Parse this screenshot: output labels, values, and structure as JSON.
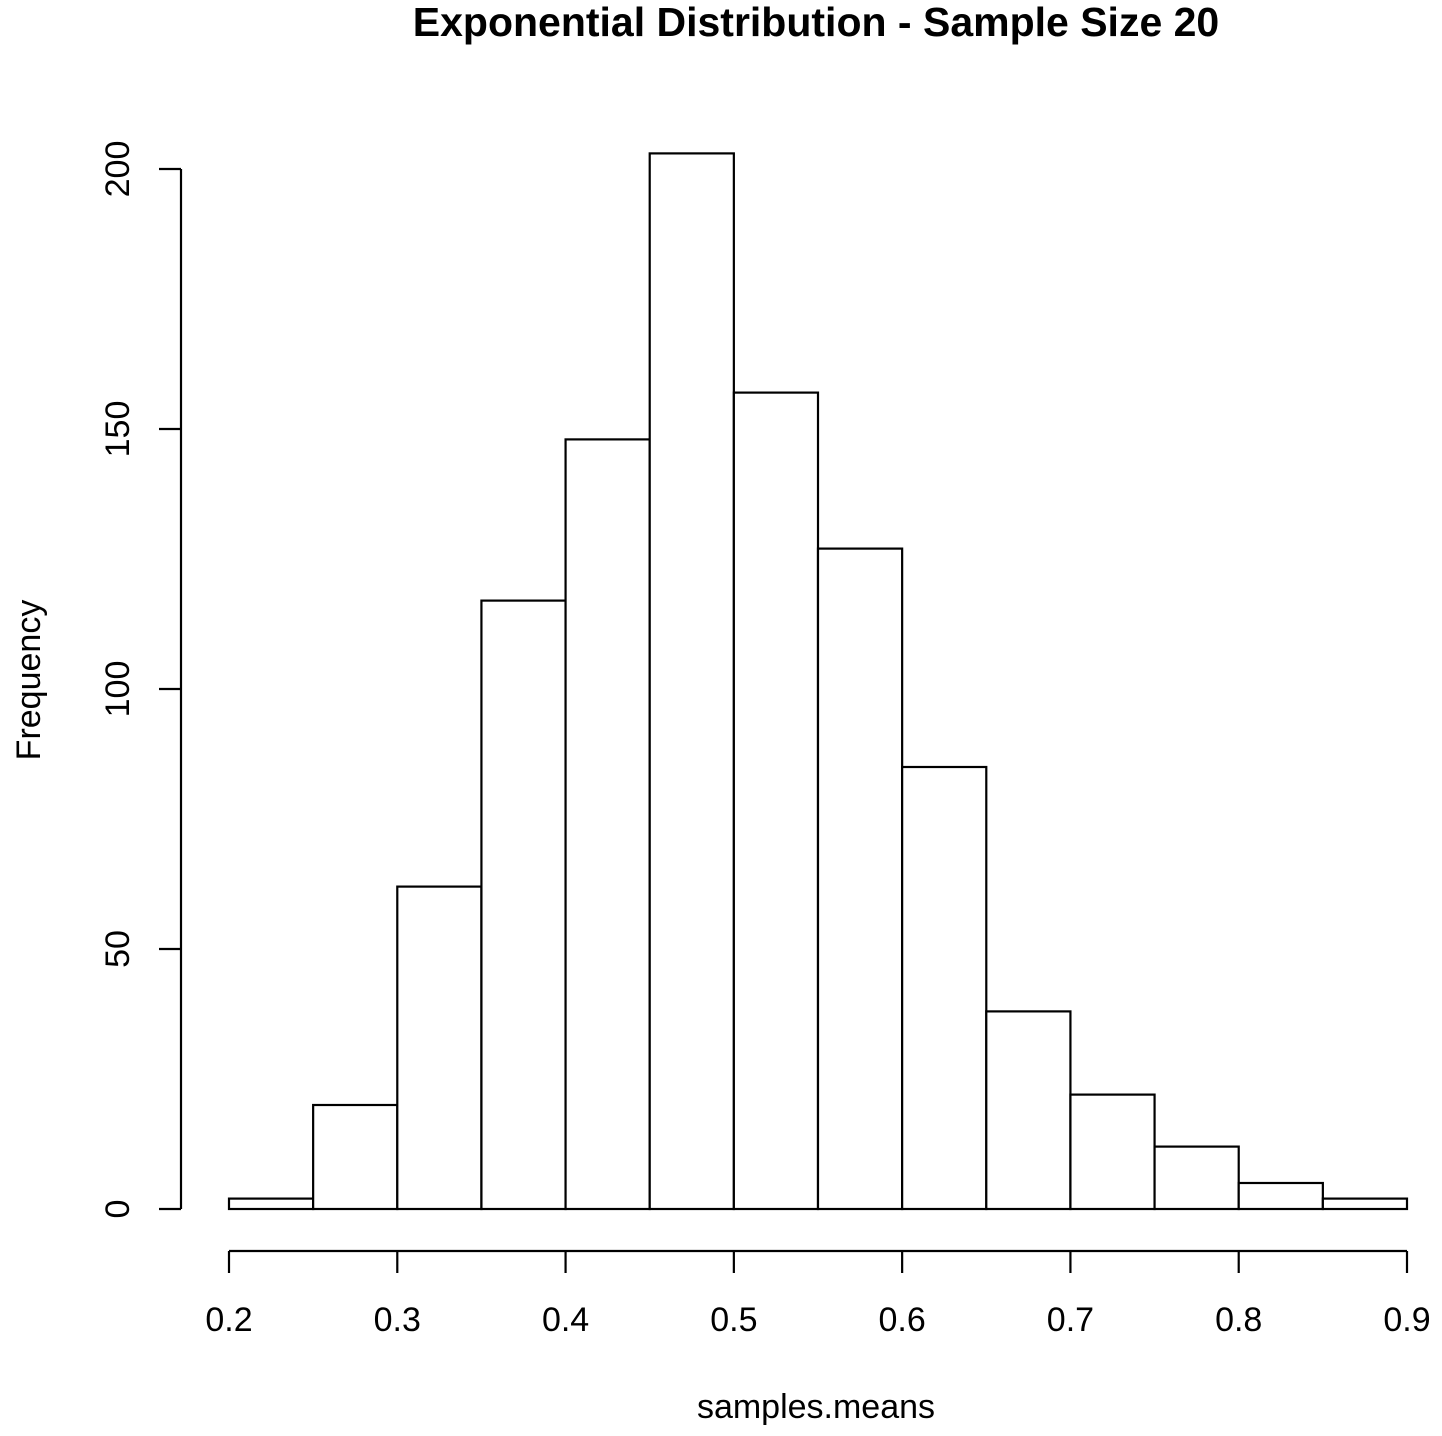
{
  "chart_data": {
    "type": "bar",
    "title": "Exponential Distribution - Sample Size 20",
    "xlabel": "samples.means",
    "ylabel": "Frequency",
    "bins": [
      {
        "start": 0.2,
        "end": 0.25,
        "count": 2
      },
      {
        "start": 0.25,
        "end": 0.3,
        "count": 20
      },
      {
        "start": 0.3,
        "end": 0.35,
        "count": 62
      },
      {
        "start": 0.35,
        "end": 0.4,
        "count": 117
      },
      {
        "start": 0.4,
        "end": 0.45,
        "count": 148
      },
      {
        "start": 0.45,
        "end": 0.5,
        "count": 203
      },
      {
        "start": 0.5,
        "end": 0.55,
        "count": 157
      },
      {
        "start": 0.55,
        "end": 0.6,
        "count": 127
      },
      {
        "start": 0.6,
        "end": 0.65,
        "count": 85
      },
      {
        "start": 0.65,
        "end": 0.7,
        "count": 38
      },
      {
        "start": 0.7,
        "end": 0.75,
        "count": 22
      },
      {
        "start": 0.75,
        "end": 0.8,
        "count": 12
      },
      {
        "start": 0.8,
        "end": 0.85,
        "count": 5
      },
      {
        "start": 0.85,
        "end": 0.9,
        "count": 2
      }
    ],
    "xlim": [
      0.2,
      0.9
    ],
    "ylim": [
      0,
      200
    ],
    "xticks": [
      "0.2",
      "0.3",
      "0.4",
      "0.5",
      "0.6",
      "0.7",
      "0.8",
      "0.9"
    ],
    "yticks": [
      "0",
      "50",
      "100",
      "150",
      "200"
    ],
    "grid": false,
    "legend": "none"
  }
}
